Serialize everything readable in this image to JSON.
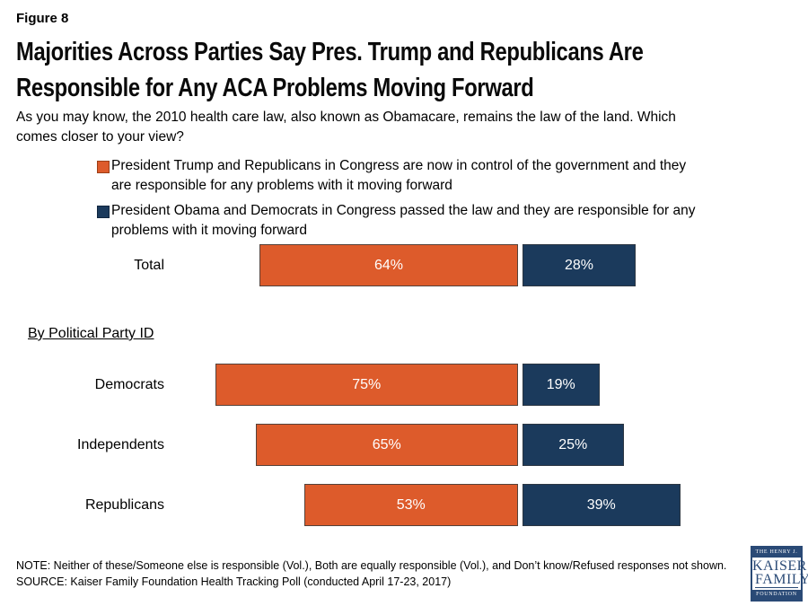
{
  "header": {
    "figure_label": "Figure 8",
    "title_line1": "Majorities Across Parties Say Pres. Trump and Republicans Are",
    "title_line2": "Responsible for Any ACA Problems Moving Forward",
    "subtitle": "As you may know, the 2010 health care law, also known as Obamacare, remains the law of the land. Which\ncomes closer to your view?"
  },
  "legend": {
    "items": [
      {
        "label": "President Trump and Republicans in Congress are now in control of the government and they\nare responsible for any problems with it moving forward",
        "color": "#DD5B2B"
      },
      {
        "label": "President Obama and Democrats in Congress passed the law and they are responsible for any\nproblems with it moving forward",
        "color": "#1B3A5C"
      }
    ]
  },
  "section_label": "By Political Party ID",
  "chart_data": {
    "type": "bar",
    "orientation": "horizontal",
    "unit": "%",
    "axis_range": [
      0,
      100
    ],
    "grid": false,
    "legend_position": "top",
    "categories": [
      "Total",
      "Democrats",
      "Independents",
      "Republicans"
    ],
    "series": [
      {
        "name": "President Trump and Republicans responsible",
        "color": "#DD5B2B",
        "values": [
          64,
          75,
          65,
          53
        ]
      },
      {
        "name": "President Obama and Democrats responsible",
        "color": "#1B3A5C",
        "values": [
          28,
          19,
          25,
          39
        ]
      }
    ]
  },
  "footer": {
    "note": "NOTE: Neither of these/Someone else is responsible (Vol.), Both are equally responsible (Vol.), and Don’t know/Refused responses not shown.",
    "source": "SOURCE: Kaiser Family Foundation Health Tracking Poll (conducted April 17-23, 2017)"
  },
  "logo": {
    "line1": "THE HENRY J.",
    "line2": "KAISER",
    "line3": "FAMILY",
    "line4": "FOUNDATION",
    "color": "#2A4A76"
  }
}
